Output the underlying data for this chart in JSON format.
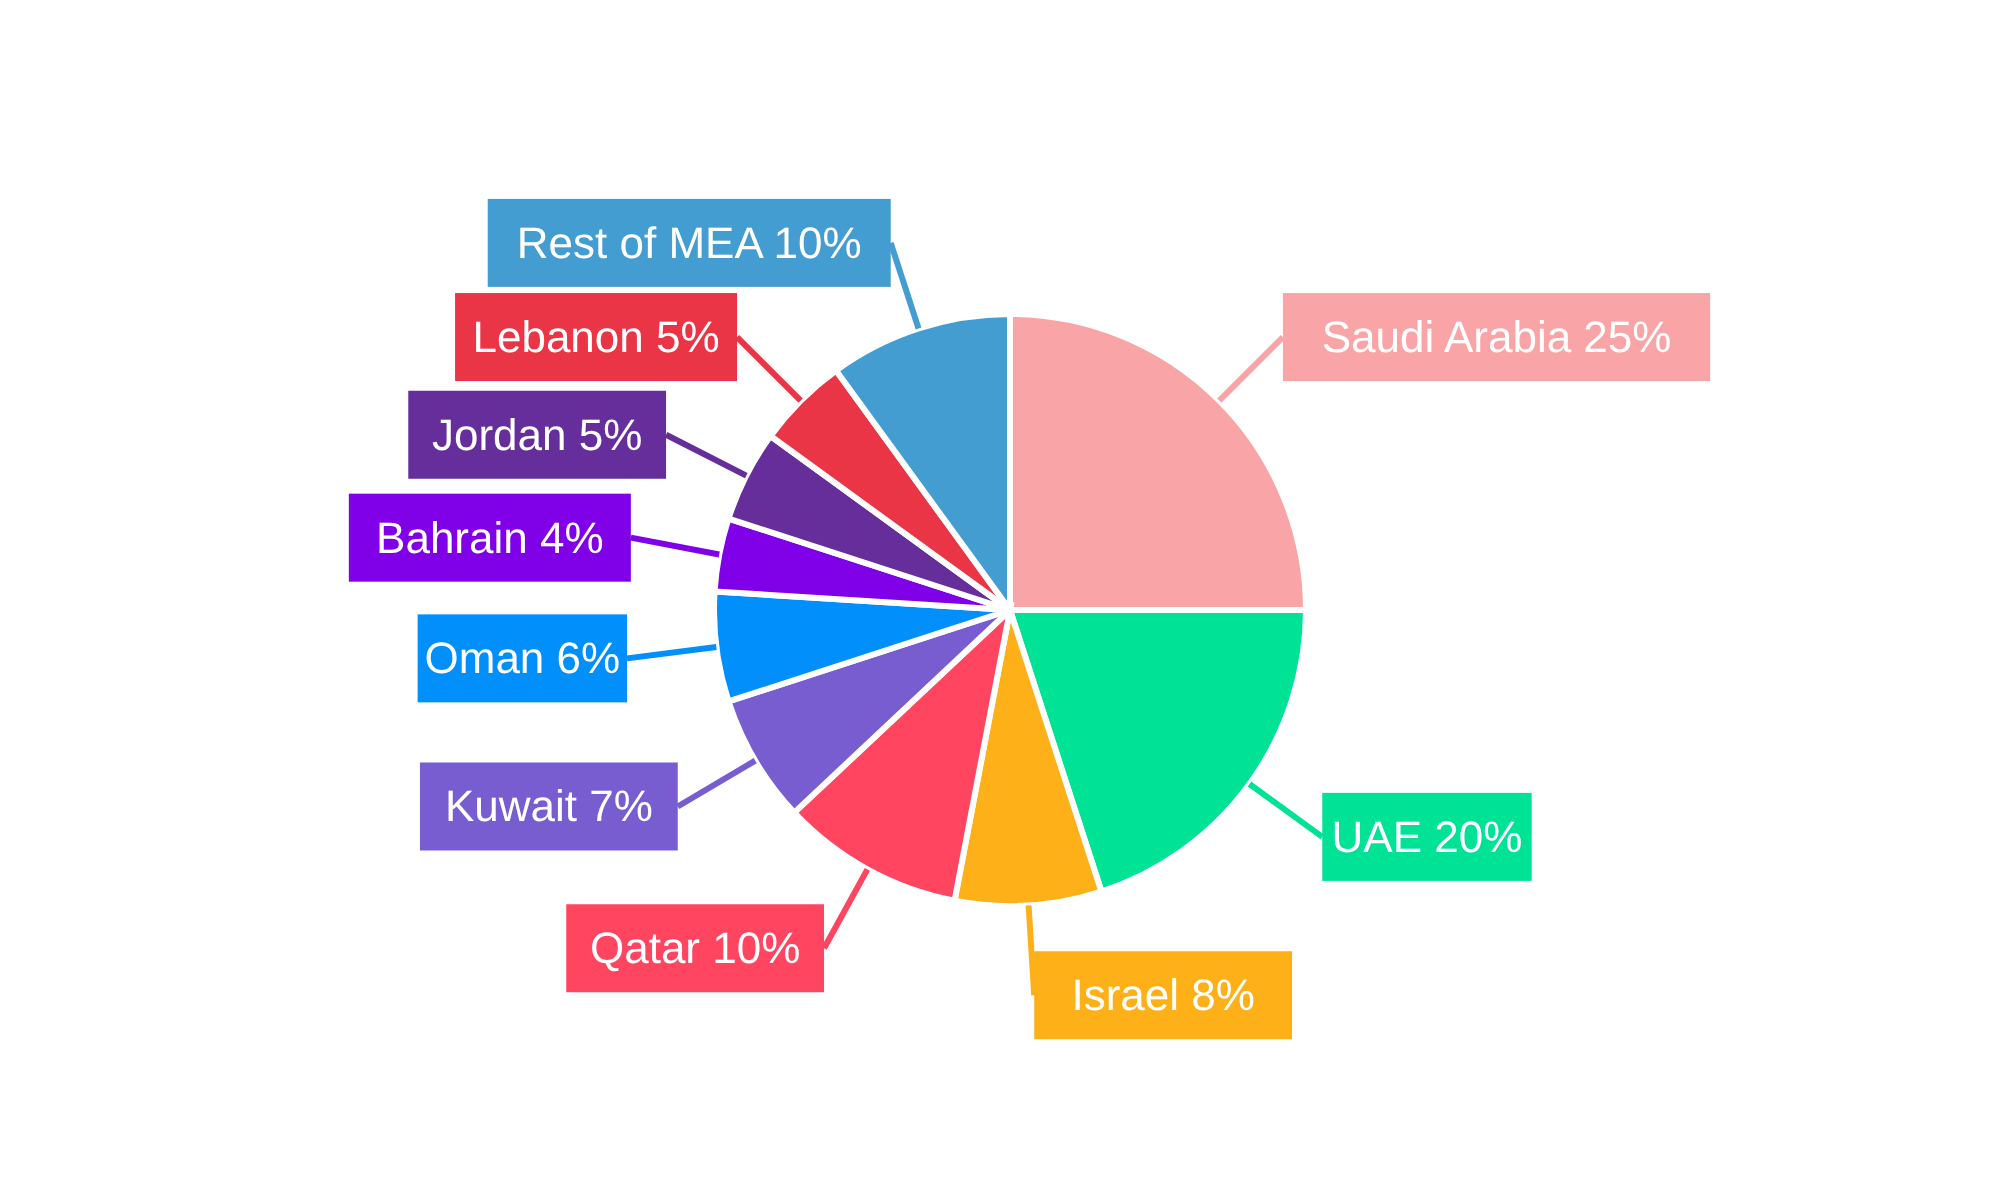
{
  "chart_data": {
    "type": "pie",
    "categories": [
      "Saudi Arabia",
      "UAE",
      "Israel",
      "Qatar",
      "Kuwait",
      "Oman",
      "Bahrain",
      "Jordan",
      "Lebanon",
      "Rest of MEA"
    ],
    "values": [
      25,
      20,
      8,
      10,
      7,
      6,
      4,
      5,
      5,
      10
    ],
    "value_labels": [
      "25%",
      "20%",
      "8%",
      "10%",
      "7%",
      "6%",
      "4%",
      "5%",
      "5%",
      "10%"
    ],
    "colors": [
      "#f9a5a8",
      "#00e396",
      "#feb019",
      "#ff4560",
      "#775dd0",
      "#008ffb",
      "#8000e8",
      "#662e9b",
      "#ea3546",
      "#449dd1"
    ],
    "legend": false
  }
}
